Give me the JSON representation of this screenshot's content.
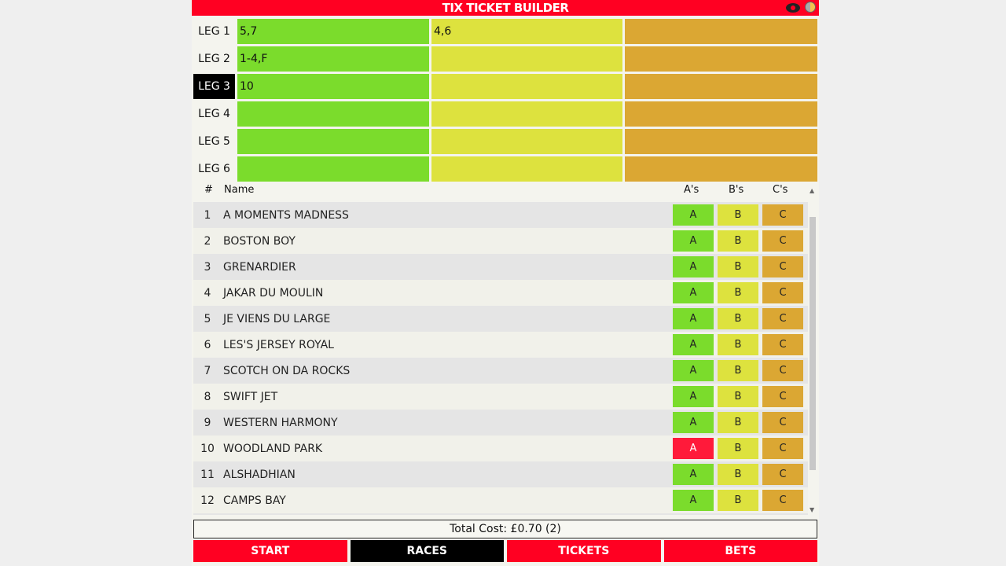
{
  "title": "TIX TICKET BUILDER",
  "header_icons": [
    "eye-icon",
    "contrast-icon"
  ],
  "colors": {
    "header": "#ff0022",
    "a": "#7bdc2c",
    "b": "#dde23e",
    "c": "#dba733",
    "selected_a": "#ff1a3a"
  },
  "legs": [
    {
      "label": "LEG 1",
      "a": "5,7",
      "b": "4,6",
      "c": ""
    },
    {
      "label": "LEG 2",
      "a": "1-4,F",
      "b": "",
      "c": ""
    },
    {
      "label": "LEG 3",
      "a": "10",
      "b": "",
      "c": "",
      "selected": true
    },
    {
      "label": "LEG 4",
      "a": "",
      "b": "",
      "c": ""
    },
    {
      "label": "LEG 5",
      "a": "",
      "b": "",
      "c": ""
    },
    {
      "label": "LEG 6",
      "a": "",
      "b": "",
      "c": ""
    }
  ],
  "table": {
    "headers": {
      "num": "#",
      "name": "Name",
      "a": "A's",
      "b": "B's",
      "c": "C's"
    },
    "button_labels": {
      "a": "A",
      "b": "B",
      "c": "C"
    },
    "rows": [
      {
        "num": "1",
        "name": "A MOMENTS MADNESS"
      },
      {
        "num": "2",
        "name": "BOSTON BOY"
      },
      {
        "num": "3",
        "name": "GRENARDIER"
      },
      {
        "num": "4",
        "name": "JAKAR DU MOULIN"
      },
      {
        "num": "5",
        "name": "JE VIENS DU LARGE"
      },
      {
        "num": "6",
        "name": "LES'S JERSEY ROYAL"
      },
      {
        "num": "7",
        "name": "SCOTCH ON DA ROCKS"
      },
      {
        "num": "8",
        "name": "SWIFT JET"
      },
      {
        "num": "9",
        "name": "WESTERN HARMONY"
      },
      {
        "num": "10",
        "name": "WOODLAND PARK",
        "a_selected": true
      },
      {
        "num": "11",
        "name": "ALSHADHIAN"
      },
      {
        "num": "12",
        "name": "CAMPS BAY"
      },
      {
        "num": "",
        "name": ""
      }
    ]
  },
  "total": "Total Cost: £0.70 (2)",
  "nav": [
    {
      "label": "START"
    },
    {
      "label": "RACES",
      "active": true
    },
    {
      "label": "TICKETS"
    },
    {
      "label": "BETS"
    }
  ]
}
